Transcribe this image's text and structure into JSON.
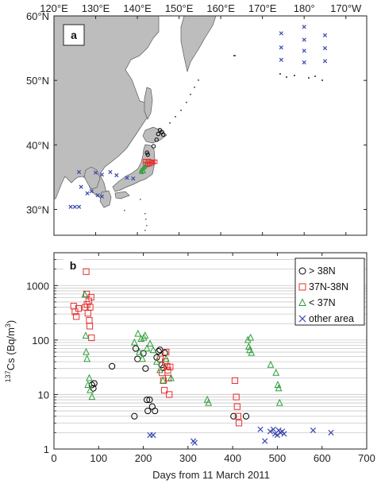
{
  "chart_data": [
    {
      "type": "scatter",
      "panel_label": "a",
      "x_ticks": [
        "120°E",
        "130°E",
        "140°E",
        "150°E",
        "160°E",
        "170°E",
        "180°",
        "170°W"
      ],
      "y_ticks": [
        "30°N",
        "40°N",
        "50°N",
        "60°N"
      ],
      "xlim": [
        120,
        195
      ],
      "ylim": [
        26,
        60
      ],
      "series": [
        {
          "key": "gt38",
          "marker": "circle",
          "color": "#000000",
          "points": [
            [
              144.6,
              40.8
            ],
            [
              145.0,
              41.7
            ],
            [
              145.4,
              42.3
            ],
            [
              145.9,
              42.0
            ],
            [
              146.2,
              41.6
            ],
            [
              143.9,
              39.8
            ],
            [
              142.5,
              38.5
            ],
            [
              142.3,
              38.8
            ]
          ]
        },
        {
          "key": "37to38",
          "marker": "square",
          "color": "#e53030",
          "points": [
            [
              141.8,
              37.5
            ],
            [
              142.3,
              37.5
            ],
            [
              142.8,
              37.5
            ],
            [
              143.3,
              37.4
            ],
            [
              143.8,
              37.3
            ],
            [
              144.3,
              37.4
            ],
            [
              141.9,
              37.0
            ],
            [
              142.4,
              36.9
            ],
            [
              142.9,
              37.0
            ],
            [
              143.4,
              37.1
            ]
          ]
        },
        {
          "key": "lt37",
          "marker": "triangle",
          "color": "#2e9e3a",
          "points": [
            [
              140.9,
              36.0
            ],
            [
              141.3,
              36.3
            ],
            [
              141.6,
              36.5
            ],
            [
              141.9,
              36.7
            ],
            [
              141.0,
              35.8
            ],
            [
              141.5,
              35.9
            ]
          ]
        },
        {
          "key": "other",
          "marker": "x",
          "color": "#3a49b0",
          "points": [
            [
              126.0,
              35.8
            ],
            [
              130.0,
              35.7
            ],
            [
              131.5,
              35.4
            ],
            [
              133.5,
              35.8
            ],
            [
              135.0,
              35.3
            ],
            [
              137.5,
              34.9
            ],
            [
              139.0,
              34.8
            ],
            [
              126.5,
              33.5
            ],
            [
              128.0,
              32.5
            ],
            [
              129.0,
              32.8
            ],
            [
              130.5,
              32.2
            ],
            [
              131.5,
              32.0
            ],
            [
              124.0,
              30.4
            ],
            [
              125.0,
              30.4
            ],
            [
              126.0,
              30.4
            ],
            [
              174.5,
              57.3
            ],
            [
              174.5,
              55.1
            ],
            [
              174.5,
              53.2
            ],
            [
              180.0,
              58.3
            ],
            [
              180.0,
              56.3
            ],
            [
              180.0,
              54.6
            ],
            [
              180.0,
              52.8
            ],
            [
              185.0,
              57.0
            ],
            [
              185.0,
              55.0
            ],
            [
              185.0,
              53.0
            ]
          ]
        }
      ]
    },
    {
      "type": "scatter",
      "panel_label": "b",
      "xlabel": "Days from 11 March 2011",
      "ylabel_sup": "137",
      "ylabel_main": "Cs (Bq/m",
      "ylabel_sup2": "3",
      "ylabel_end": ")",
      "xlim": [
        0,
        700
      ],
      "ylim": [
        1,
        4000
      ],
      "y_scale": "log",
      "x_ticks": [
        0,
        100,
        200,
        300,
        400,
        500,
        600,
        700
      ],
      "y_ticks": [
        {
          "v": 1,
          "label": "1"
        },
        {
          "v": 10,
          "label": "10"
        },
        {
          "v": 100,
          "label": "100"
        },
        {
          "v": 1000,
          "label": "1000"
        }
      ],
      "grid": "horizontal",
      "legend": [
        {
          "key": "gt38",
          "label": "> 38N"
        },
        {
          "key": "37to38",
          "label": "37N-38N"
        },
        {
          "key": "lt37",
          "label": "< 37N"
        },
        {
          "key": "other",
          "label": "other area"
        }
      ],
      "series": [
        {
          "key": "gt38",
          "marker": "circle",
          "color": "#000000",
          "points": [
            [
              85,
              15
            ],
            [
              88,
              13
            ],
            [
              90,
              16
            ],
            [
              130,
              33
            ],
            [
              180,
              4
            ],
            [
              183,
              70
            ],
            [
              187,
              45
            ],
            [
              200,
              57
            ],
            [
              205,
              30
            ],
            [
              208,
              8
            ],
            [
              210,
              5
            ],
            [
              214,
              8
            ],
            [
              220,
              6
            ],
            [
              226,
              5
            ],
            [
              230,
              48
            ],
            [
              234,
              62
            ],
            [
              237,
              66
            ],
            [
              241,
              35
            ],
            [
              245,
              31
            ],
            [
              248,
              58
            ],
            [
              402,
              4
            ],
            [
              430,
              4
            ]
          ]
        },
        {
          "key": "37to38",
          "marker": "square",
          "color": "#e53030",
          "points": [
            [
              44,
              420
            ],
            [
              47,
              330
            ],
            [
              50,
              270
            ],
            [
              55,
              380
            ],
            [
              70,
              400
            ],
            [
              72,
              1800
            ],
            [
              73,
              700
            ],
            [
              74,
              450
            ],
            [
              76,
              310
            ],
            [
              78,
              520
            ],
            [
              79,
              230
            ],
            [
              80,
              180
            ],
            [
              81,
              400
            ],
            [
              83,
              610
            ],
            [
              84,
              110
            ],
            [
              238,
              45
            ],
            [
              242,
              25
            ],
            [
              245,
              18
            ],
            [
              247,
              12
            ],
            [
              249,
              40
            ],
            [
              251,
              60
            ],
            [
              253,
              33
            ],
            [
              255,
              28
            ],
            [
              256,
              20
            ],
            [
              258,
              10
            ],
            [
              260,
              32
            ],
            [
              405,
              18
            ],
            [
              408,
              9
            ],
            [
              410,
              6
            ],
            [
              412,
              4
            ],
            [
              414,
              3
            ]
          ]
        },
        {
          "key": "lt37",
          "marker": "triangle",
          "color": "#2e9e3a",
          "points": [
            [
              69,
              680
            ],
            [
              71,
              120
            ],
            [
              72,
              60
            ],
            [
              74,
              45
            ],
            [
              76,
              15
            ],
            [
              79,
              20
            ],
            [
              81,
              12
            ],
            [
              85,
              9
            ],
            [
              180,
              90
            ],
            [
              188,
              130
            ],
            [
              191,
              60
            ],
            [
              195,
              105
            ],
            [
              198,
              45
            ],
            [
              201,
              110
            ],
            [
              204,
              120
            ],
            [
              208,
              70
            ],
            [
              215,
              85
            ],
            [
              222,
              65
            ],
            [
              230,
              40
            ],
            [
              237,
              28
            ],
            [
              244,
              18
            ],
            [
              251,
              45
            ],
            [
              262,
              20
            ],
            [
              343,
              8
            ],
            [
              346,
              7
            ],
            [
              434,
              100
            ],
            [
              436,
              75
            ],
            [
              438,
              65
            ],
            [
              440,
              110
            ],
            [
              442,
              58
            ],
            [
              485,
              35
            ],
            [
              497,
              25
            ],
            [
              501,
              15
            ],
            [
              503,
              13
            ],
            [
              505,
              7
            ]
          ]
        },
        {
          "key": "other",
          "marker": "x",
          "color": "#3a49b0",
          "points": [
            [
              215,
              1.8
            ],
            [
              222,
              1.8
            ],
            [
              312,
              1.4
            ],
            [
              315,
              1.3
            ],
            [
              462,
              2.3
            ],
            [
              472,
              1.4
            ],
            [
              484,
              2.1
            ],
            [
              491,
              2.3
            ],
            [
              495,
              1.9
            ],
            [
              500,
              1.8
            ],
            [
              503,
              2.2
            ],
            [
              507,
              2.0
            ],
            [
              511,
              2.1
            ],
            [
              515,
              1.9
            ],
            [
              580,
              2.2
            ],
            [
              620,
              2.0
            ]
          ]
        }
      ]
    }
  ]
}
